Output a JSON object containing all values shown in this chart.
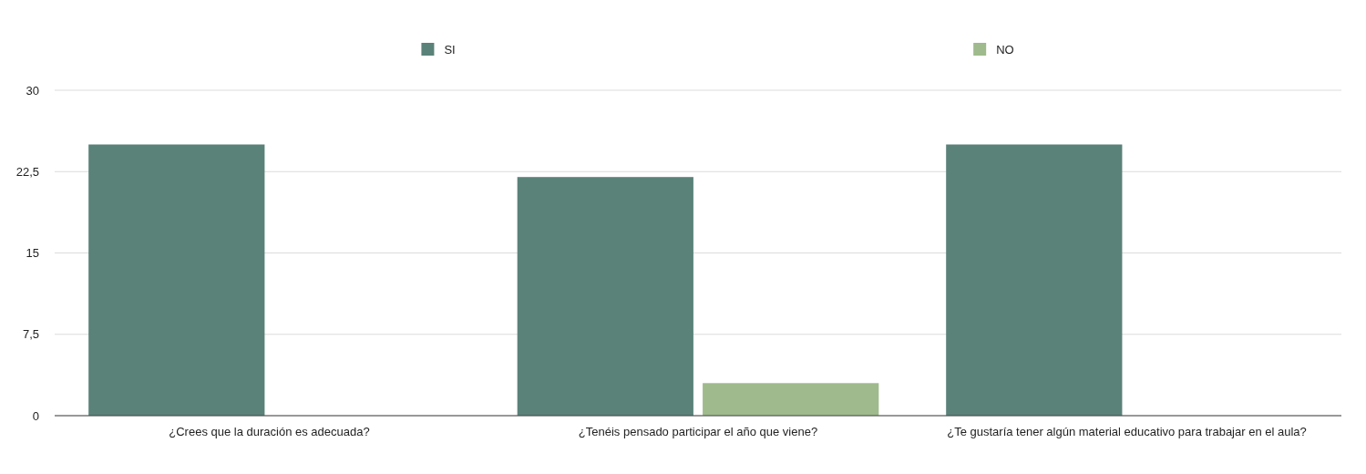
{
  "chart_data": {
    "type": "bar",
    "categories": [
      "¿Crees que la duración es adecuada?",
      "¿Tenéis pensado participar el año que viene?",
      "¿Te gustaría tener algún material educativo para trabajar en el aula?"
    ],
    "series": [
      {
        "name": "SI",
        "color": "#5a8279",
        "values": [
          25,
          22,
          25
        ]
      },
      {
        "name": "NO",
        "color": "#9fba8c",
        "values": [
          0,
          3,
          0
        ]
      }
    ],
    "ylim": [
      0,
      30
    ],
    "yticks": [
      0,
      {
        "value": 7.5,
        "label": "7,5"
      },
      15,
      {
        "value": 22.5,
        "label": "22,5"
      },
      30
    ],
    "grid": "y",
    "legend": "top"
  }
}
